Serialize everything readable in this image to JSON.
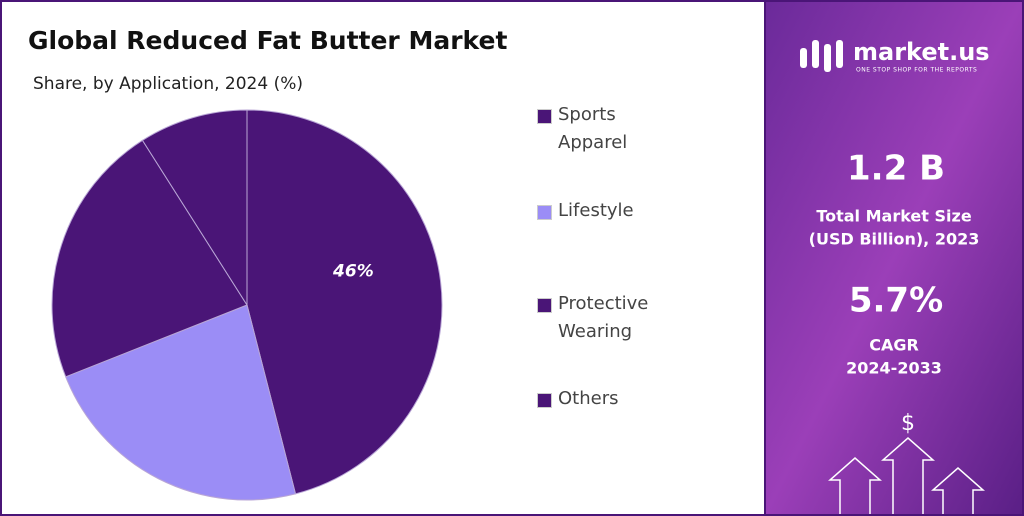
{
  "chart_data": {
    "type": "pie",
    "title": "Global Reduced Fat Butter Market",
    "subtitle": "Share, by Application, 2024 (%)",
    "categories": [
      "Sports Apparel",
      "Lifestyle",
      "Protective Wearing",
      "Others"
    ],
    "values": [
      46,
      23,
      22,
      9
    ],
    "value_labels": [
      "46%",
      null,
      null,
      null
    ],
    "colors": [
      "#4a1577",
      "#9b8df6",
      "#4a1577",
      "#4a1577"
    ],
    "legend": "right"
  },
  "panel": {
    "brand": "market.us",
    "tagline": "ONE STOP SHOP FOR THE REPORTS",
    "market_size": "1.2 B",
    "market_size_label_1": "Total Market Size",
    "market_size_label_2": "(USD Billion), 2023",
    "cagr": "5.7%",
    "cagr_label_1": "CAGR",
    "cagr_label_2": "2024-2033",
    "icon": "$"
  }
}
